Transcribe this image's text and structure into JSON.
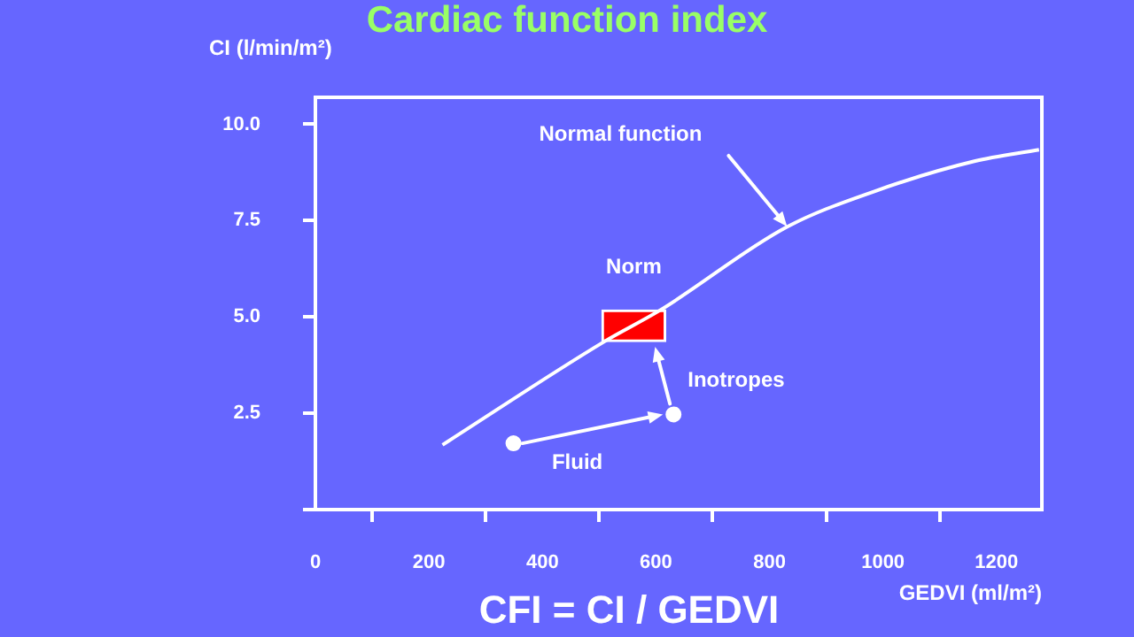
{
  "chart_data": {
    "type": "line",
    "title": "Cardiac function index",
    "xlabel": "GEDVI (ml/m²)",
    "ylabel": "CI (l/min/m²)",
    "xlim": [
      0,
      1280
    ],
    "xticks": [
      0,
      200,
      400,
      600,
      800,
      1000,
      1200
    ],
    "ylim": [
      0,
      10.7
    ],
    "yticks": [
      {
        "value": 0,
        "label": null
      },
      {
        "value": 2.5,
        "label": "2.5"
      },
      {
        "value": 5,
        "label": "5.0"
      },
      {
        "value": 7.5,
        "label": "7.5"
      },
      {
        "value": 10,
        "label": "10.0"
      }
    ],
    "marker": "none",
    "series": [
      {
        "color": "#ffffff",
        "x": [
          224,
          509,
          608,
          830,
          985,
          1161,
          1275
        ],
        "values": [
          1.68,
          4.36,
          5.18,
          7.33,
          8.26,
          9.04,
          9.34
        ]
      },
      {
        "type": "bar",
        "color": "#ff0000",
        "x": [
          561
        ],
        "base": [
          4.36
        ],
        "values": [
          0.82
        ]
      },
      {
        "type": "scatter",
        "color": "#ffffff",
        "marker": "circle",
        "x": [
          349,
          631
        ],
        "values": [
          1.72,
          2.47
        ]
      }
    ],
    "annotations": [
      "Normal function",
      {
        "text": "Norm",
        "x": 561,
        "y": 5.18
      },
      {
        "text": "Inotropes",
        "x": 631,
        "y": 2.47
      },
      {
        "text": "Fluid",
        "x": 349,
        "y": 1.72
      },
      "CFI = CI / GEDVI"
    ]
  }
}
